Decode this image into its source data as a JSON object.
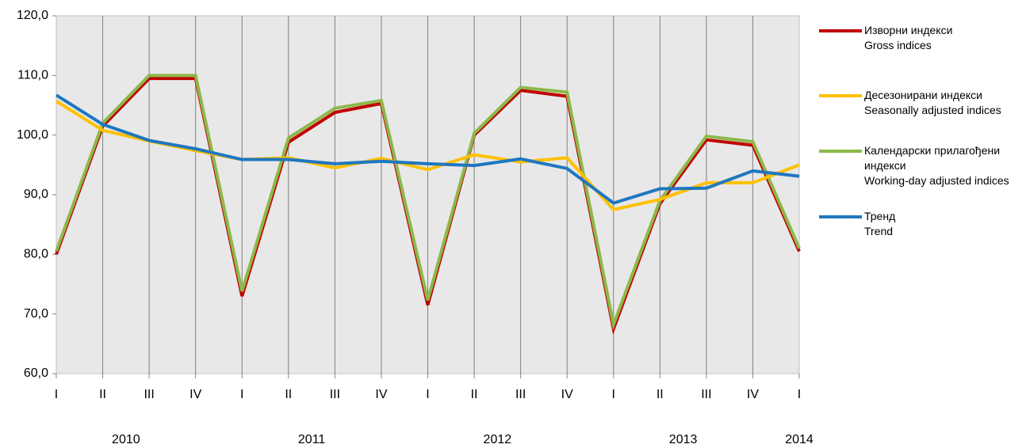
{
  "chart_data": {
    "type": "line",
    "categories": [
      "I",
      "II",
      "III",
      "IV",
      "I",
      "II",
      "III",
      "IV",
      "I",
      "II",
      "III",
      "IV",
      "I",
      "II",
      "III",
      "IV",
      "I"
    ],
    "year_groups": [
      {
        "name": "2010",
        "count": 4
      },
      {
        "name": "2011",
        "count": 4
      },
      {
        "name": "2012",
        "count": 4
      },
      {
        "name": "2013",
        "count": 4
      },
      {
        "name": "2014",
        "count": 1
      }
    ],
    "ylim": [
      60,
      120
    ],
    "yticks": [
      {
        "value": 60,
        "label": "60,0"
      },
      {
        "value": 70,
        "label": "70,0"
      },
      {
        "value": 80,
        "label": "80,0"
      },
      {
        "value": 90,
        "label": "90,0"
      },
      {
        "value": 100,
        "label": "100,0"
      },
      {
        "value": 110,
        "label": "110,0"
      },
      {
        "value": 120,
        "label": "120,0"
      }
    ],
    "grid": "vertical",
    "background": "#e8e8e8",
    "legend": "right",
    "series": [
      {
        "name": "Изворни индекси\nGross indices",
        "color": "#c00000",
        "values": [
          80,
          101.5,
          109.5,
          109.5,
          73,
          98.8,
          103.8,
          105.3,
          71.5,
          100,
          107.5,
          106.5,
          67.5,
          88.5,
          99.2,
          98.3,
          80.5
        ]
      },
      {
        "name": "Десезонирани индекси\nSeasonally adjusted indices",
        "color": "#ffc000",
        "values": [
          105.7,
          100.8,
          99,
          97.4,
          95.9,
          96.2,
          94.5,
          96.1,
          94.2,
          96.7,
          95.5,
          96.2,
          87.5,
          89.2,
          92,
          92,
          95
        ]
      },
      {
        "name": "Календарски прилагођени\nиндекси\nWorking-day adjusted indices",
        "color": "#8db84a",
        "values": [
          80.5,
          102,
          110,
          110,
          73.8,
          99.5,
          104.5,
          105.8,
          72.3,
          100.3,
          108,
          107.2,
          68.2,
          89,
          99.8,
          98.9,
          81
        ]
      },
      {
        "name": "Тренд\nTrend",
        "color": "#1f77c0",
        "values": [
          106.7,
          101.8,
          99.1,
          97.7,
          95.9,
          95.9,
          95.2,
          95.6,
          95.2,
          94.9,
          96,
          94.4,
          88.6,
          91,
          91.1,
          94,
          93.1
        ]
      }
    ]
  }
}
